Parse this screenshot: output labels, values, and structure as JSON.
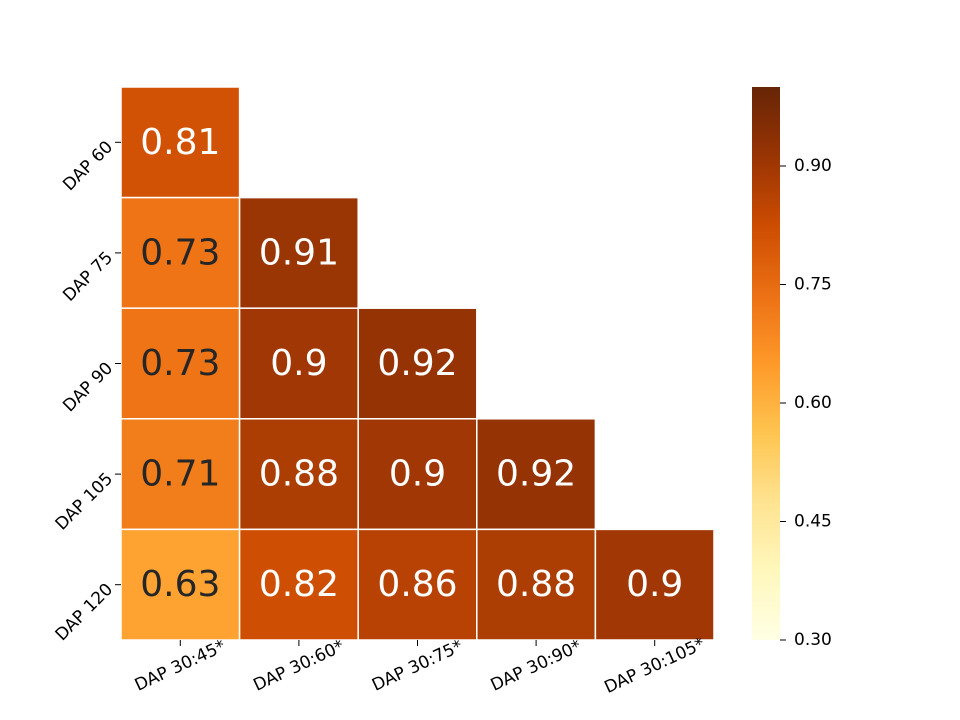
{
  "chart_data": {
    "type": "heatmap",
    "title": "",
    "xlabel": "",
    "ylabel": "",
    "x_categories": [
      "DAP 30:45*",
      "DAP 30:60*",
      "DAP 30:75*",
      "DAP 30:90*",
      "DAP 30:105*"
    ],
    "y_categories": [
      "DAP 60",
      "DAP 75",
      "DAP 90",
      "DAP 105",
      "DAP 120"
    ],
    "values": [
      [
        0.81,
        null,
        null,
        null,
        null
      ],
      [
        0.73,
        0.91,
        null,
        null,
        null
      ],
      [
        0.73,
        0.9,
        0.92,
        null,
        null
      ],
      [
        0.71,
        0.88,
        0.9,
        0.92,
        null
      ],
      [
        0.63,
        0.82,
        0.86,
        0.88,
        0.9
      ]
    ],
    "cell_labels": [
      [
        "0.81",
        "",
        "",
        "",
        ""
      ],
      [
        "0.73",
        "0.91",
        "",
        "",
        ""
      ],
      [
        "0.73",
        "0.9",
        "0.92",
        "",
        ""
      ],
      [
        "0.71",
        "0.88",
        "0.9",
        "0.92",
        ""
      ],
      [
        "0.63",
        "0.82",
        "0.86",
        "0.88",
        "0.9"
      ]
    ],
    "mask": "upper-triangle",
    "colormap": "YlOrBr",
    "vmin": 0.3,
    "vmax": 1.0,
    "colorbar": {
      "ticks": [
        0.3,
        0.45,
        0.6,
        0.75,
        0.9
      ],
      "tick_labels": [
        "0.30",
        "0.45",
        "0.60",
        "0.75",
        "0.90"
      ],
      "placement": "right"
    },
    "grid": false,
    "cell_text_colors": {
      "light": "#ffffff",
      "dark": "#262626"
    }
  }
}
